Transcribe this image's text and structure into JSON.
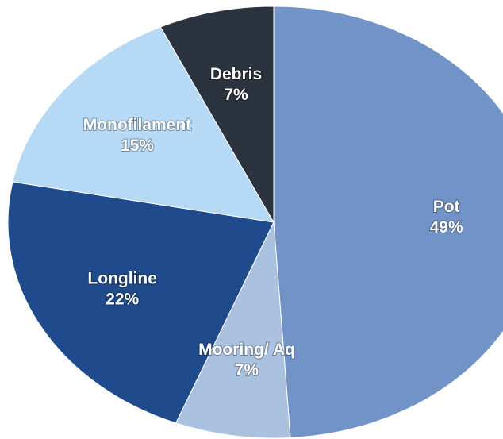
{
  "chart_data": {
    "type": "pie",
    "categories": [
      "Pot",
      "Mooring/ Aq",
      "Longline",
      "Monofilament",
      "Debris"
    ],
    "values": [
      49,
      7,
      22,
      15,
      7
    ],
    "value_labels": [
      "49%",
      "7%",
      "22%",
      "15%",
      "7%"
    ],
    "colors": [
      "#7293c8",
      "#aac1df",
      "#1f4b8c",
      "#b6daf6",
      "#2b333f"
    ]
  }
}
